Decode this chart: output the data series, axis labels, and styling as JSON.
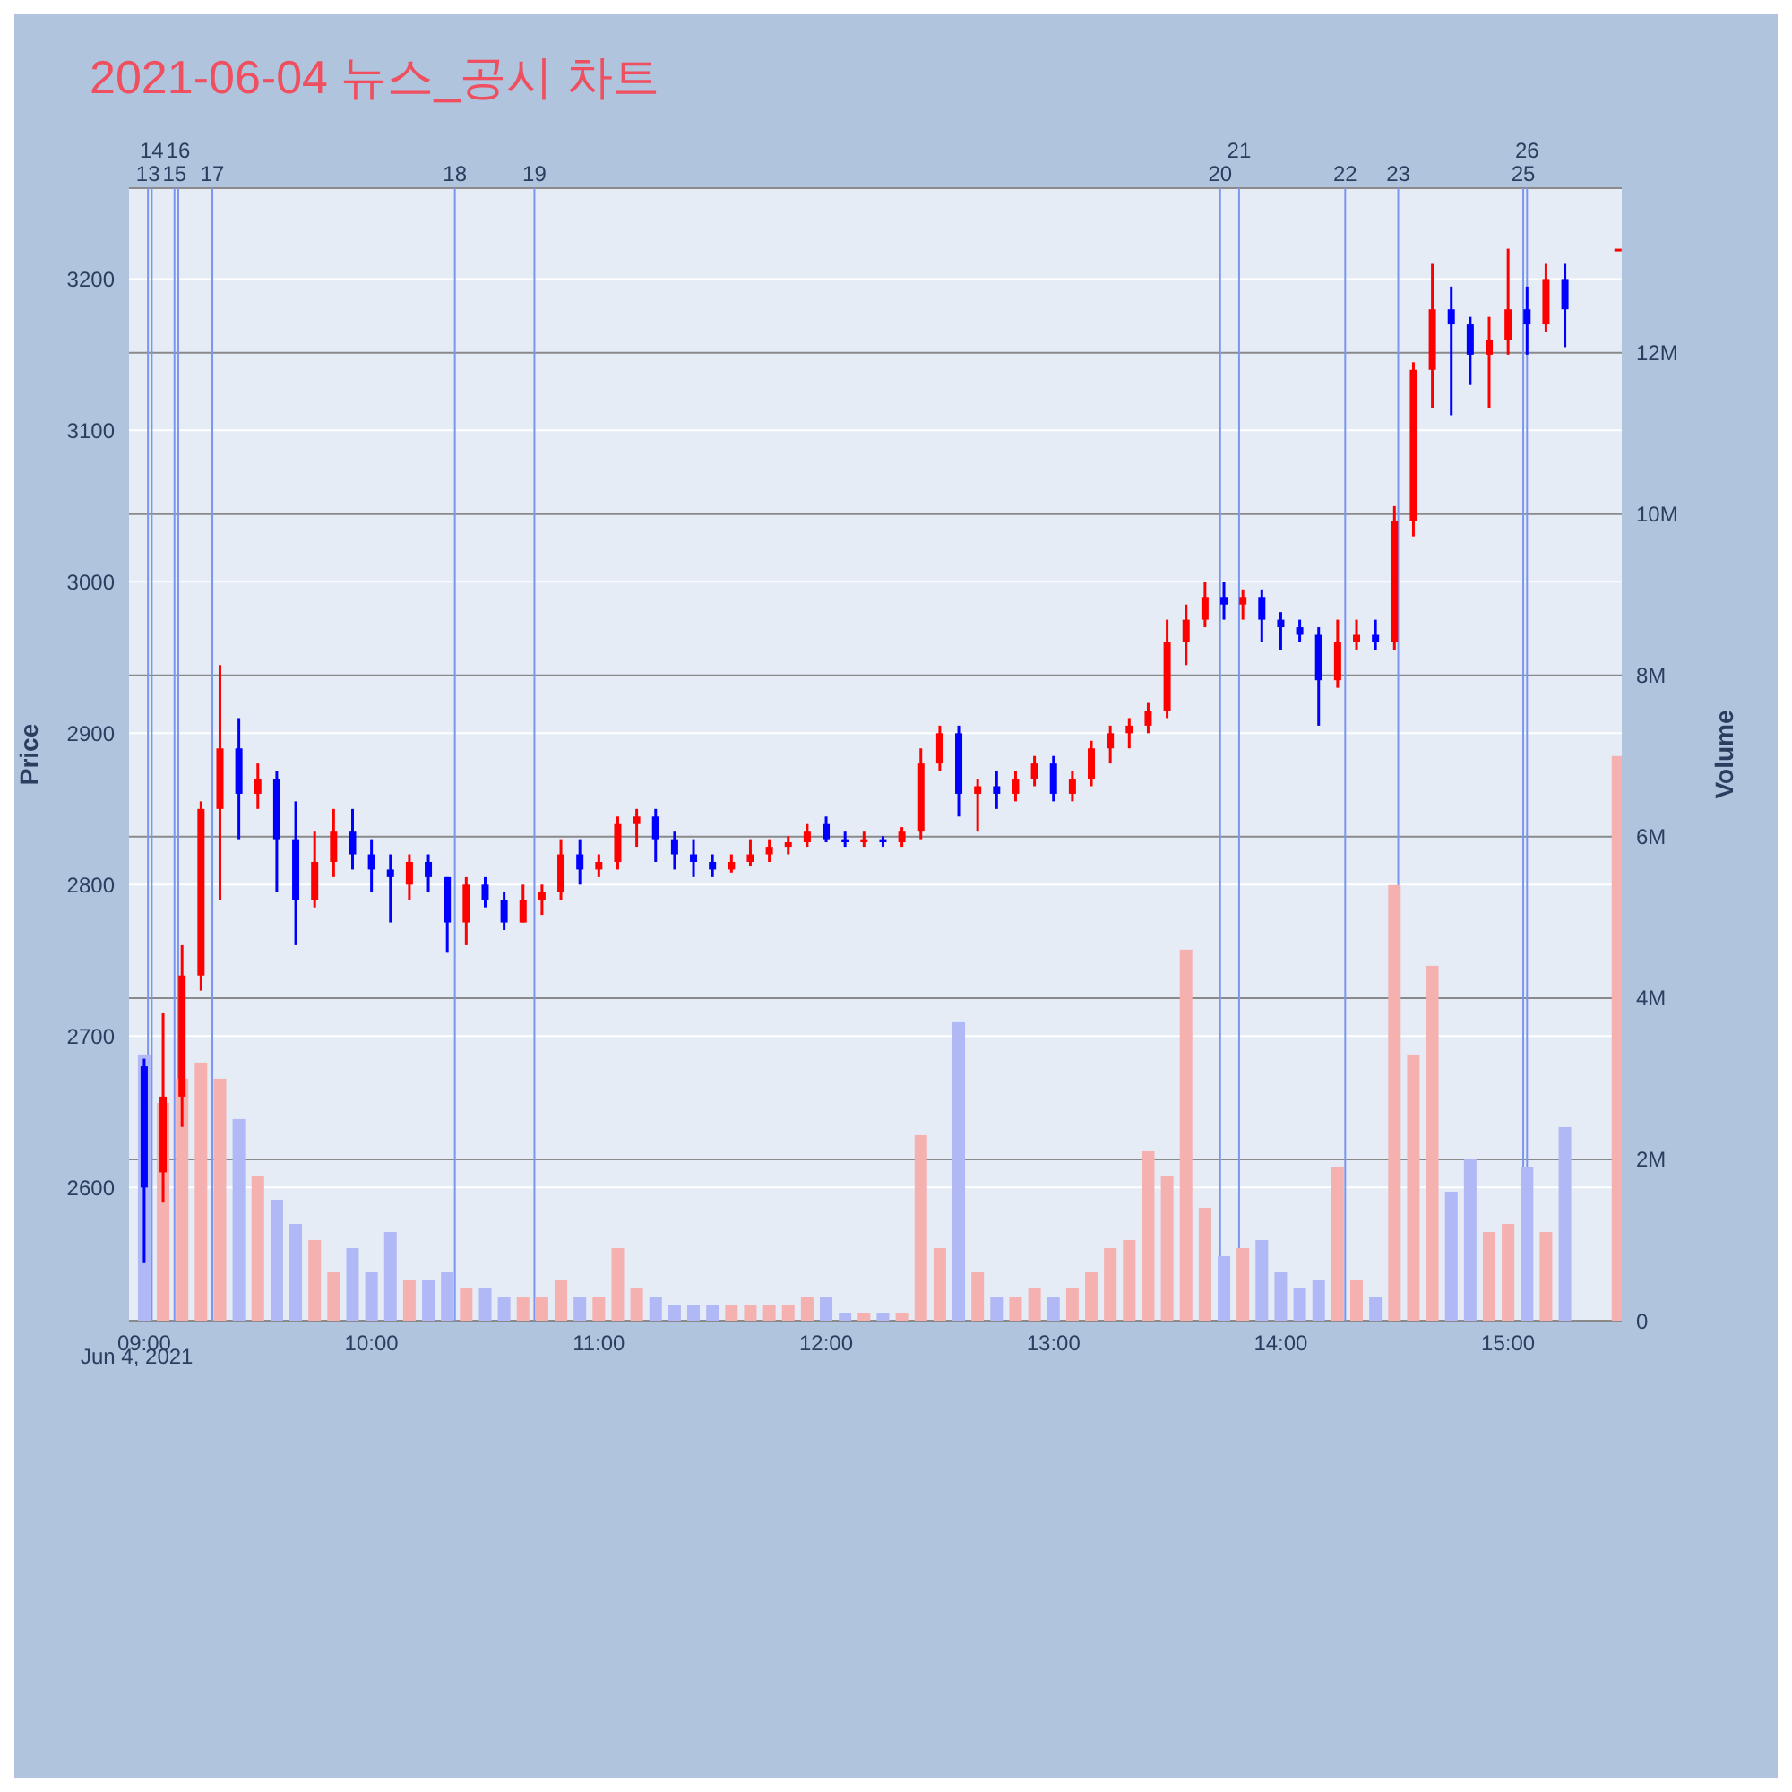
{
  "chart_data": {
    "type": "candlestick",
    "title": "2021-06-04 뉴스_공시 차트",
    "ylabel": "Price",
    "y2label": "Volume",
    "annotations": [
      "Jun 4, 2021"
    ],
    "x": [
      "2021-06-04T09:00",
      "2021-06-04T09:05",
      "2021-06-04T09:10",
      "2021-06-04T09:15",
      "2021-06-04T09:20",
      "2021-06-04T09:25",
      "2021-06-04T09:30",
      "2021-06-04T09:35",
      "2021-06-04T09:40",
      "2021-06-04T09:45",
      "2021-06-04T09:50",
      "2021-06-04T09:55",
      "2021-06-04T10:00",
      "2021-06-04T10:05",
      "2021-06-04T10:10",
      "2021-06-04T10:15",
      "2021-06-04T10:20",
      "2021-06-04T10:25",
      "2021-06-04T10:30",
      "2021-06-04T10:35",
      "2021-06-04T10:40",
      "2021-06-04T10:45",
      "2021-06-04T10:50",
      "2021-06-04T10:55",
      "2021-06-04T11:00",
      "2021-06-04T11:05",
      "2021-06-04T11:10",
      "2021-06-04T11:15",
      "2021-06-04T11:20",
      "2021-06-04T11:25",
      "2021-06-04T11:30",
      "2021-06-04T11:35",
      "2021-06-04T11:40",
      "2021-06-04T11:45",
      "2021-06-04T11:50",
      "2021-06-04T11:55",
      "2021-06-04T12:00",
      "2021-06-04T12:05",
      "2021-06-04T12:10",
      "2021-06-04T12:15",
      "2021-06-04T12:20",
      "2021-06-04T12:25",
      "2021-06-04T12:30",
      "2021-06-04T12:35",
      "2021-06-04T12:40",
      "2021-06-04T12:45",
      "2021-06-04T12:50",
      "2021-06-04T12:55",
      "2021-06-04T13:00",
      "2021-06-04T13:05",
      "2021-06-04T13:10",
      "2021-06-04T13:15",
      "2021-06-04T13:20",
      "2021-06-04T13:25",
      "2021-06-04T13:30",
      "2021-06-04T13:35",
      "2021-06-04T13:40",
      "2021-06-04T13:45",
      "2021-06-04T13:50",
      "2021-06-04T13:55",
      "2021-06-04T14:00",
      "2021-06-04T14:05",
      "2021-06-04T14:10",
      "2021-06-04T14:15",
      "2021-06-04T14:20",
      "2021-06-04T14:25",
      "2021-06-04T14:30",
      "2021-06-04T14:35",
      "2021-06-04T14:40",
      "2021-06-04T14:45",
      "2021-06-04T14:50",
      "2021-06-04T14:55",
      "2021-06-04T15:00",
      "2021-06-04T15:05",
      "2021-06-04T15:10",
      "2021-06-04T15:15",
      "2021-06-04T15:29"
    ],
    "series": [
      {
        "type": "bar",
        "axis": "y2",
        "values": [
          3.3,
          2.7,
          3.0,
          3.2,
          3.0,
          2.5,
          1.8,
          1.5,
          1.2,
          1.0,
          0.6,
          0.9,
          0.6,
          1.1,
          0.5,
          0.5,
          0.6,
          0.4,
          0.4,
          0.3,
          0.3,
          0.3,
          0.5,
          0.3,
          0.3,
          0.9,
          0.4,
          0.3,
          0.2,
          0.2,
          0.2,
          0.2,
          0.2,
          0.2,
          0.2,
          0.3,
          0.3,
          0.1,
          0.1,
          0.1,
          0.1,
          2.3,
          0.9,
          3.7,
          0.6,
          0.3,
          0.3,
          0.4,
          0.3,
          0.4,
          0.6,
          0.9,
          1.0,
          2.1,
          1.8,
          4.6,
          1.4,
          0.8,
          0.9,
          1.0,
          0.6,
          0.4,
          0.5,
          1.9,
          0.5,
          0.3,
          5.4,
          3.3,
          4.4,
          1.6,
          2.0,
          1.1,
          1.2,
          1.9,
          1.1,
          2.4,
          7.0
        ],
        "colors": [
          "#b0b8f5",
          "#f5b0b0",
          "#f5b0b0",
          "#f5b0b0",
          "#f5b0b0",
          "#b0b8f5",
          "#f5b0b0",
          "#b0b8f5",
          "#b0b8f5",
          "#f5b0b0",
          "#f5b0b0",
          "#b0b8f5",
          "#b0b8f5",
          "#b0b8f5",
          "#f5b0b0",
          "#b0b8f5",
          "#b0b8f5",
          "#f5b0b0",
          "#b0b8f5",
          "#b0b8f5",
          "#f5b0b0",
          "#f5b0b0",
          "#f5b0b0",
          "#b0b8f5",
          "#f5b0b0",
          "#f5b0b0",
          "#f5b0b0",
          "#b0b8f5",
          "#b0b8f5",
          "#b0b8f5",
          "#b0b8f5",
          "#f5b0b0",
          "#f5b0b0",
          "#f5b0b0",
          "#f5b0b0",
          "#f5b0b0",
          "#b0b8f5",
          "#b0b8f5",
          "#f5b0b0",
          "#b0b8f5",
          "#f5b0b0",
          "#f5b0b0",
          "#f5b0b0",
          "#b0b8f5",
          "#f5b0b0",
          "#b0b8f5",
          "#f5b0b0",
          "#f5b0b0",
          "#b0b8f5",
          "#f5b0b0",
          "#f5b0b0",
          "#f5b0b0",
          "#f5b0b0",
          "#f5b0b0",
          "#f5b0b0",
          "#f5b0b0",
          "#f5b0b0",
          "#b0b8f5",
          "#f5b0b0",
          "#b0b8f5",
          "#b0b8f5",
          "#b0b8f5",
          "#b0b8f5",
          "#f5b0b0",
          "#f5b0b0",
          "#b0b8f5",
          "#f5b0b0",
          "#f5b0b0",
          "#f5b0b0",
          "#b0b8f5",
          "#b0b8f5",
          "#f5b0b0",
          "#f5b0b0",
          "#b0b8f5",
          "#f5b0b0",
          "#b0b8f5",
          "#f5b0b0"
        ]
      },
      {
        "type": "candlestick",
        "ohlc": [
          [
            2680,
            2685,
            2550,
            2600
          ],
          [
            2610,
            2715,
            2590,
            2660
          ],
          [
            2660,
            2760,
            2640,
            2740
          ],
          [
            2740,
            2855,
            2730,
            2850
          ],
          [
            2850,
            2945,
            2790,
            2890
          ],
          [
            2890,
            2910,
            2830,
            2860
          ],
          [
            2860,
            2880,
            2850,
            2870
          ],
          [
            2870,
            2875,
            2795,
            2830
          ],
          [
            2830,
            2855,
            2760,
            2790
          ],
          [
            2790,
            2835,
            2785,
            2815
          ],
          [
            2815,
            2850,
            2805,
            2835
          ],
          [
            2835,
            2850,
            2810,
            2820
          ],
          [
            2820,
            2830,
            2795,
            2810
          ],
          [
            2810,
            2820,
            2775,
            2805
          ],
          [
            2800,
            2820,
            2790,
            2815
          ],
          [
            2815,
            2820,
            2795,
            2805
          ],
          [
            2805,
            2805,
            2755,
            2775
          ],
          [
            2775,
            2805,
            2760,
            2800
          ],
          [
            2800,
            2805,
            2785,
            2790
          ],
          [
            2790,
            2795,
            2770,
            2775
          ],
          [
            2775,
            2800,
            2775,
            2790
          ],
          [
            2790,
            2800,
            2780,
            2795
          ],
          [
            2795,
            2830,
            2790,
            2820
          ],
          [
            2820,
            2830,
            2800,
            2810
          ],
          [
            2810,
            2820,
            2805,
            2815
          ],
          [
            2815,
            2845,
            2810,
            2840
          ],
          [
            2840,
            2850,
            2825,
            2845
          ],
          [
            2845,
            2850,
            2815,
            2830
          ],
          [
            2830,
            2835,
            2810,
            2820
          ],
          [
            2820,
            2830,
            2805,
            2815
          ],
          [
            2815,
            2820,
            2805,
            2810
          ],
          [
            2810,
            2820,
            2808,
            2815
          ],
          [
            2815,
            2830,
            2812,
            2820
          ],
          [
            2820,
            2830,
            2815,
            2825
          ],
          [
            2825,
            2832,
            2820,
            2828
          ],
          [
            2828,
            2840,
            2825,
            2835
          ],
          [
            2840,
            2845,
            2828,
            2830
          ],
          [
            2830,
            2835,
            2825,
            2828
          ],
          [
            2828,
            2835,
            2825,
            2830
          ],
          [
            2830,
            2832,
            2825,
            2828
          ],
          [
            2828,
            2838,
            2825,
            2835
          ],
          [
            2835,
            2890,
            2830,
            2880
          ],
          [
            2880,
            2905,
            2875,
            2900
          ],
          [
            2900,
            2905,
            2845,
            2860
          ],
          [
            2860,
            2870,
            2835,
            2865
          ],
          [
            2865,
            2875,
            2850,
            2860
          ],
          [
            2860,
            2875,
            2855,
            2870
          ],
          [
            2870,
            2885,
            2865,
            2880
          ],
          [
            2880,
            2885,
            2855,
            2860
          ],
          [
            2860,
            2875,
            2855,
            2870
          ],
          [
            2870,
            2895,
            2865,
            2890
          ],
          [
            2890,
            2905,
            2880,
            2900
          ],
          [
            2900,
            2910,
            2890,
            2905
          ],
          [
            2905,
            2920,
            2900,
            2915
          ],
          [
            2915,
            2975,
            2910,
            2960
          ],
          [
            2960,
            2985,
            2945,
            2975
          ],
          [
            2975,
            3000,
            2970,
            2990
          ],
          [
            2990,
            3000,
            2975,
            2985
          ],
          [
            2985,
            2995,
            2975,
            2990
          ],
          [
            2990,
            2995,
            2960,
            2975
          ],
          [
            2975,
            2980,
            2955,
            2970
          ],
          [
            2970,
            2975,
            2960,
            2965
          ],
          [
            2965,
            2970,
            2905,
            2935
          ],
          [
            2935,
            2975,
            2930,
            2960
          ],
          [
            2960,
            2975,
            2955,
            2965
          ],
          [
            2965,
            2975,
            2955,
            2960
          ],
          [
            2960,
            3050,
            2955,
            3040
          ],
          [
            3040,
            3145,
            3030,
            3140
          ],
          [
            3140,
            3210,
            3115,
            3180
          ],
          [
            3180,
            3195,
            3110,
            3170
          ],
          [
            3170,
            3175,
            3130,
            3150
          ],
          [
            3150,
            3175,
            3115,
            3160
          ],
          [
            3160,
            3220,
            3150,
            3180
          ],
          [
            3180,
            3195,
            3150,
            3170
          ],
          [
            3170,
            3210,
            3165,
            3200
          ],
          [
            3200,
            3210,
            3155,
            3180
          ],
          [
            3220,
            3220,
            3220,
            3220
          ]
        ],
        "colors": [
          "#0000ff",
          "#ff0000",
          "#ff0000",
          "#ff0000",
          "#ff0000",
          "#0000ff",
          "#ff0000",
          "#0000ff",
          "#0000ff",
          "#ff0000",
          "#ff0000",
          "#0000ff",
          "#0000ff",
          "#0000ff",
          "#ff0000",
          "#0000ff",
          "#0000ff",
          "#ff0000",
          "#0000ff",
          "#0000ff",
          "#ff0000",
          "#ff0000",
          "#ff0000",
          "#0000ff",
          "#ff0000",
          "#ff0000",
          "#ff0000",
          "#0000ff",
          "#0000ff",
          "#0000ff",
          "#0000ff",
          "#ff0000",
          "#ff0000",
          "#ff0000",
          "#ff0000",
          "#ff0000",
          "#0000ff",
          "#0000ff",
          "#ff0000",
          "#0000ff",
          "#ff0000",
          "#ff0000",
          "#ff0000",
          "#0000ff",
          "#ff0000",
          "#0000ff",
          "#ff0000",
          "#ff0000",
          "#0000ff",
          "#ff0000",
          "#ff0000",
          "#ff0000",
          "#ff0000",
          "#ff0000",
          "#ff0000",
          "#ff0000",
          "#ff0000",
          "#0000ff",
          "#ff0000",
          "#0000ff",
          "#0000ff",
          "#0000ff",
          "#0000ff",
          "#ff0000",
          "#ff0000",
          "#0000ff",
          "#ff0000",
          "#ff0000",
          "#ff0000",
          "#0000ff",
          "#0000ff",
          "#ff0000",
          "#ff0000",
          "#0000ff",
          "#ff0000",
          "#0000ff",
          "#ff0000"
        ]
      }
    ],
    "xlim": [
      "2021-06-04T08:56",
      "2021-06-04T15:30"
    ],
    "xticks": [
      {
        "value": "2021-06-04T09:00",
        "label": "09:00"
      },
      {
        "value": "2021-06-04T10:00",
        "label": "10:00"
      },
      {
        "value": "2021-06-04T11:00",
        "label": "11:00"
      },
      {
        "value": "2021-06-04T12:00",
        "label": "12:00"
      },
      {
        "value": "2021-06-04T13:00",
        "label": "13:00"
      },
      {
        "value": "2021-06-04T14:00",
        "label": "14:00"
      },
      {
        "value": "2021-06-04T15:00",
        "label": "15:00"
      }
    ],
    "ylim": [
      2512,
      3260
    ],
    "yticks": [
      2600,
      2700,
      2800,
      2900,
      3000,
      3100,
      3200
    ],
    "y2lim": [
      0,
      14.04
    ],
    "y2ticks": [
      0,
      {
        "value": 2,
        "label": "2M"
      },
      {
        "value": 4,
        "label": "4M"
      },
      {
        "value": 6,
        "label": "6M"
      },
      {
        "value": 8,
        "label": "8M"
      },
      {
        "value": 10,
        "label": "10M"
      },
      {
        "value": 12,
        "label": "12M"
      }
    ],
    "grid": "y",
    "ref_lines": [
      {
        "axis": "x",
        "value": "2021-06-04T09:01",
        "label": "13",
        "color": "#7b96f0"
      },
      {
        "axis": "x",
        "value": "2021-06-04T09:02",
        "label": "14",
        "color": "#7b96f0"
      },
      {
        "axis": "x",
        "value": "2021-06-04T09:08",
        "label": "15",
        "color": "#7b96f0"
      },
      {
        "axis": "x",
        "value": "2021-06-04T09:09",
        "label": "16",
        "color": "#7b96f0"
      },
      {
        "axis": "x",
        "value": "2021-06-04T09:18",
        "label": "17",
        "color": "#7b96f0"
      },
      {
        "axis": "x",
        "value": "2021-06-04T10:22",
        "label": "18",
        "color": "#7b96f0"
      },
      {
        "axis": "x",
        "value": "2021-06-04T10:43",
        "label": "19",
        "color": "#7b96f0"
      },
      {
        "axis": "x",
        "value": "2021-06-04T13:44",
        "label": "20",
        "color": "#7b96f0"
      },
      {
        "axis": "x",
        "value": "2021-06-04T13:49",
        "label": "21",
        "color": "#7b96f0"
      },
      {
        "axis": "x",
        "value": "2021-06-04T14:17",
        "label": "22",
        "color": "#7b96f0"
      },
      {
        "axis": "x",
        "value": "2021-06-04T14:31",
        "label": "23",
        "color": "#7b96f0"
      },
      {
        "axis": "x",
        "value": "2021-06-04T15:04",
        "label": "25",
        "color": "#7b96f0"
      },
      {
        "axis": "x",
        "value": "2021-06-04T15:05",
        "label": "26",
        "color": "#7b96f0"
      }
    ]
  }
}
